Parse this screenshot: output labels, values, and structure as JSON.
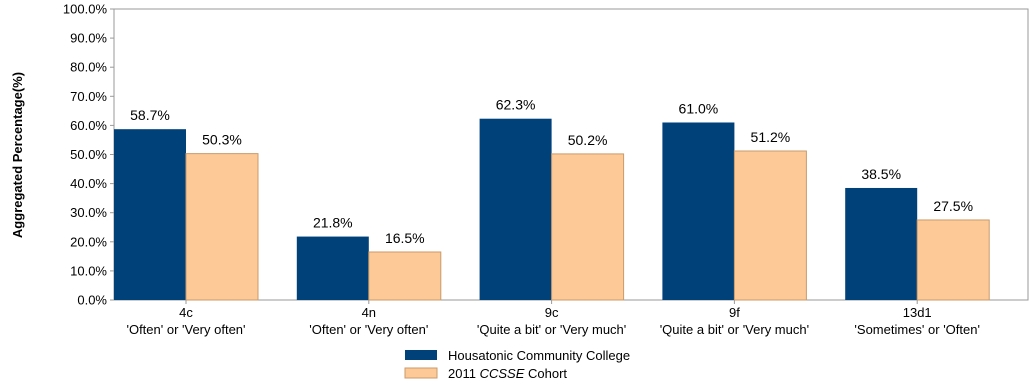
{
  "colors": {
    "series_1": "#00417a",
    "series_2": "#fdca97",
    "series_2_stroke": "#c99a6b",
    "axis": "#9a9a9a"
  },
  "chart_data": {
    "type": "bar",
    "ylabel": "Aggregated Percentage(%)",
    "ylim": [
      0,
      100
    ],
    "ytick_step": 10,
    "grid": false,
    "legend_position": "bottom-center",
    "categories": [
      {
        "code": "4c",
        "desc": "'Often' or 'Very often'"
      },
      {
        "code": "4n",
        "desc": "'Often' or 'Very often'"
      },
      {
        "code": "9c",
        "desc": "'Quite a bit' or 'Very much'"
      },
      {
        "code": "9f",
        "desc": "'Quite a bit' or 'Very much'"
      },
      {
        "code": "13d1",
        "desc": "'Sometimes' or 'Often'"
      }
    ],
    "series": [
      {
        "name": "Housatonic Community College",
        "values": [
          58.7,
          21.8,
          62.3,
          61.0,
          38.5
        ]
      },
      {
        "name": "2011 CCSSE Cohort",
        "name_parts": [
          "2011 ",
          "CCSSE",
          " Cohort"
        ],
        "values": [
          50.3,
          16.5,
          50.2,
          51.2,
          27.5
        ]
      }
    ]
  }
}
